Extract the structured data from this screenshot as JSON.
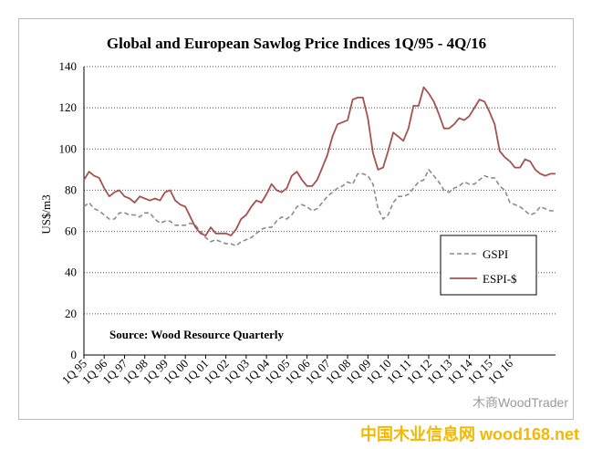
{
  "chart_data": {
    "type": "line",
    "title": "Global and European Sawlog Price Indices 1Q/95 - 4Q/16",
    "xlabel": "",
    "ylabel": "US$/m3",
    "ylim": [
      0,
      140
    ],
    "yticks": [
      0,
      20,
      40,
      60,
      80,
      100,
      120,
      140
    ],
    "grid": "horizontal-dotted",
    "legend_position": "middle-right",
    "annotation": "Source: Wood Resource Quarterly",
    "x_tick_labels": [
      "1Q 95",
      "1Q 96",
      "1Q 97",
      "1Q 98",
      "1Q 99",
      "1Q 00",
      "1Q 01",
      "1Q 02",
      "1Q 03",
      "1Q 04",
      "1Q 05",
      "1Q 06",
      "1Q 07",
      "1Q 08",
      "1Q 09",
      "1Q 10",
      "1Q 11",
      "1Q 12",
      "1Q 13",
      "1Q 14",
      "1Q 15",
      "1Q 16"
    ],
    "series": [
      {
        "name": "GSPI",
        "style": "dashed",
        "color": "#8c8c8c",
        "values": [
          72,
          74,
          71,
          70,
          68,
          66,
          66,
          69,
          69,
          68,
          68,
          67,
          69,
          69,
          66,
          64,
          65,
          65,
          63,
          63,
          63,
          64,
          63,
          60,
          57,
          55,
          56,
          55,
          54,
          54,
          53,
          55,
          56,
          57,
          59,
          61,
          62,
          62,
          65,
          67,
          66,
          68,
          72,
          73,
          72,
          70,
          71,
          74,
          77,
          79,
          81,
          82,
          84,
          83,
          88,
          88,
          87,
          83,
          71,
          66,
          68,
          74,
          77,
          77,
          78,
          81,
          84,
          85,
          90,
          87,
          84,
          80,
          79,
          81,
          82,
          84,
          83,
          83,
          85,
          87,
          86,
          86,
          82,
          80,
          74,
          73,
          72,
          70,
          68,
          69,
          72,
          71,
          70,
          70
        ]
      },
      {
        "name": "ESPI-$",
        "style": "solid",
        "color": "#a5524f",
        "values": [
          85,
          89,
          87,
          86,
          81,
          77,
          79,
          80,
          77,
          76,
          74,
          77,
          76,
          75,
          76,
          75,
          79,
          80,
          75,
          73,
          72,
          67,
          62,
          59,
          58,
          62,
          59,
          59,
          59,
          58,
          61,
          66,
          68,
          72,
          75,
          74,
          78,
          83,
          80,
          79,
          81,
          87,
          89,
          85,
          82,
          82,
          85,
          91,
          97,
          106,
          112,
          113,
          114,
          124,
          125,
          125,
          115,
          98,
          90,
          91,
          99,
          108,
          106,
          104,
          110,
          121,
          121,
          130,
          127,
          123,
          117,
          110,
          110,
          112,
          115,
          114,
          116,
          120,
          124,
          123,
          118,
          112,
          99,
          96,
          94,
          91,
          91,
          95,
          94,
          90,
          88,
          87,
          88,
          88
        ]
      }
    ]
  },
  "footer": {
    "watermark": "木商WoodTrader",
    "site": "中国木业信息网 wood168.net"
  }
}
